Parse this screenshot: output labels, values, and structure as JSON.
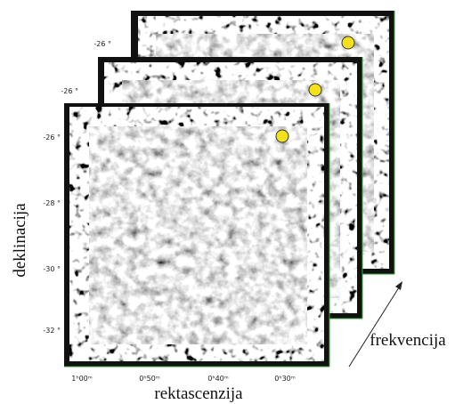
{
  "axes": {
    "y_label": "deklinacija",
    "x_label": "rektascenzija",
    "z_label": "frekvencija"
  },
  "y_ticks": [
    "-26 °",
    "-28 °",
    "-30 °",
    "-32 °"
  ],
  "x_ticks": [
    "1ʰ00ᵐ",
    "0ʰ50ᵐ",
    "0ʰ40ᵐ",
    "0ʰ30ᵐ"
  ],
  "layer_labels": [
    "-26 °",
    "-26 °"
  ]
}
